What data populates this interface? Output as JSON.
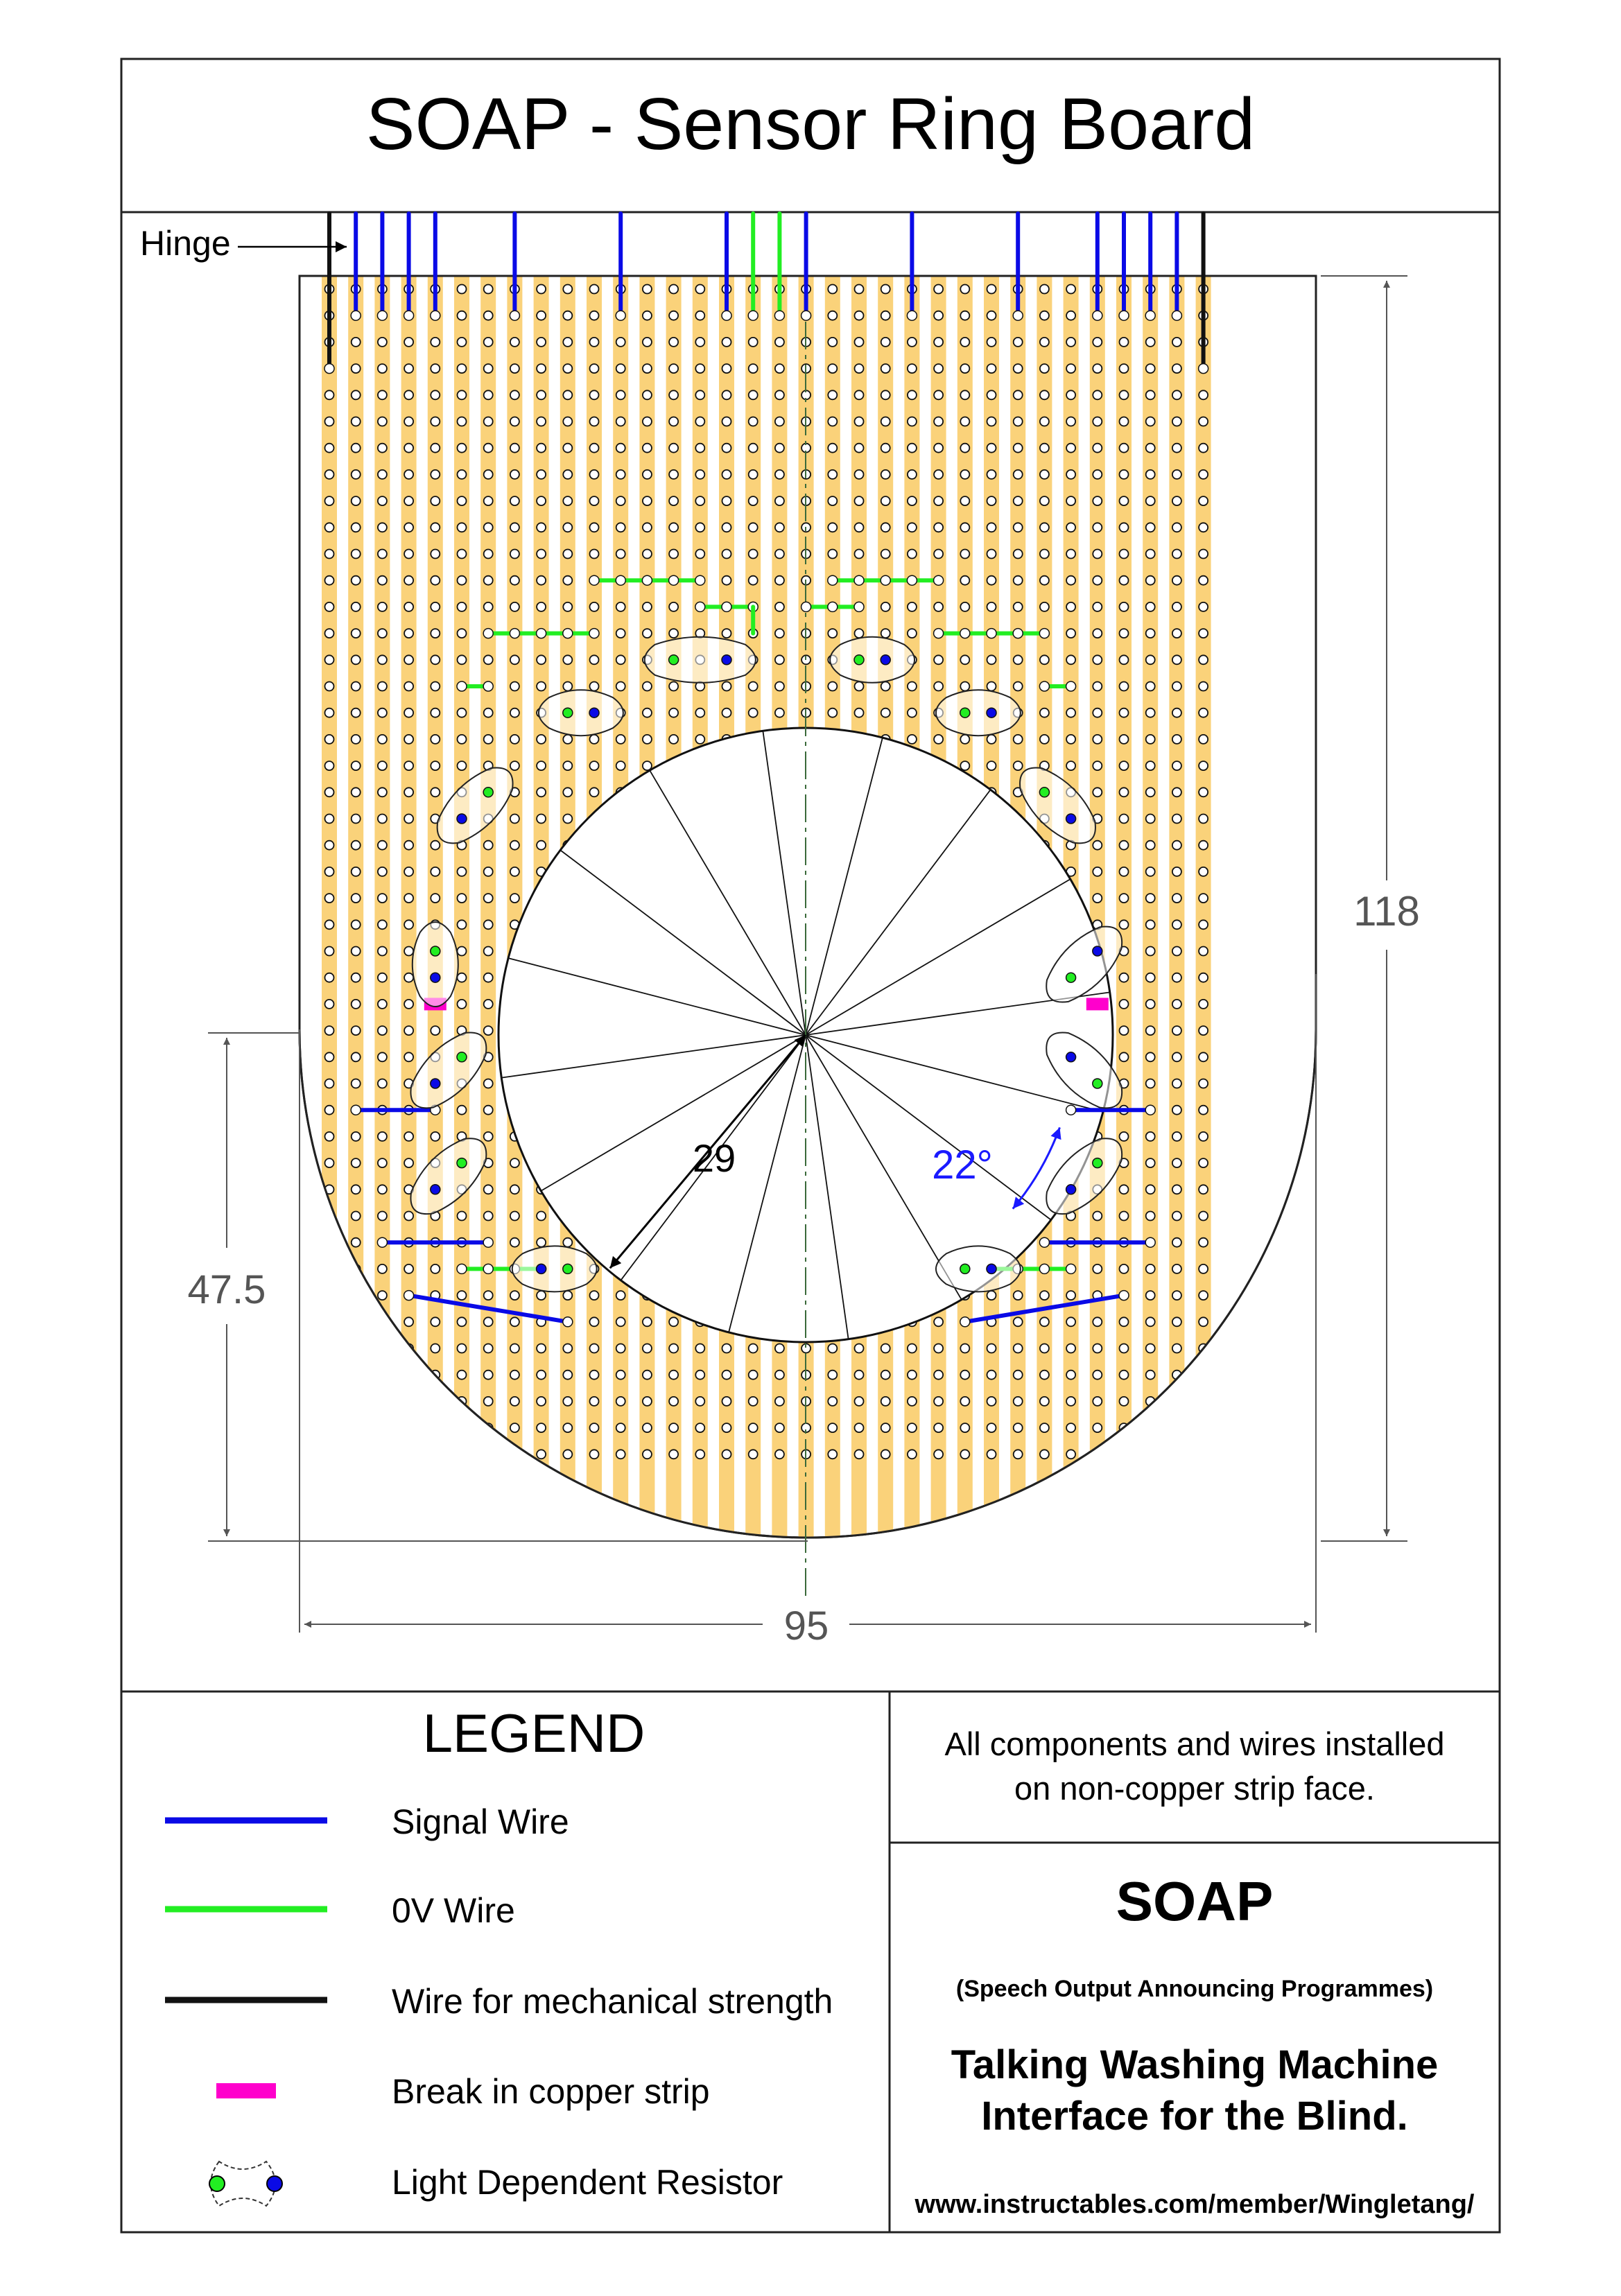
{
  "title": "SOAP - Sensor Ring Board",
  "hinge_label": "Hinge",
  "dimensions": {
    "height": "118",
    "lower_height": "47.5",
    "width": "95",
    "radius": "29",
    "angle": "22°"
  },
  "legend": {
    "heading": "LEGEND",
    "items": [
      {
        "label": "Signal Wire",
        "icon": "signal-wire-line"
      },
      {
        "label": "0V Wire",
        "icon": "zero-volt-wire-line"
      },
      {
        "label": "Wire for mechanical strength",
        "icon": "strength-wire-line"
      },
      {
        "label": "Break in copper strip",
        "icon": "strip-break-mark"
      },
      {
        "label": "Light Dependent Resistor",
        "icon": "ldr-symbol"
      }
    ]
  },
  "note": {
    "line1": "All components and wires installed",
    "line2": "on non-copper strip face."
  },
  "info": {
    "name": "SOAP",
    "expansion": "(Speech Output Announcing Programmes)",
    "tagline1": "Talking Washing Machine",
    "tagline2": "Interface for the Blind.",
    "url": "www.instructables.com/member/Wingletang/"
  },
  "colors": {
    "copper_strip": "#fad27a",
    "signal_wire": "#0a0ae6",
    "zero_volt_wire": "#22ee22",
    "strength_wire": "#111111",
    "strip_break": "#ff00cc",
    "angle_annotation": "#1a1aff",
    "frame": "#222222",
    "dimension_line": "#555555"
  }
}
